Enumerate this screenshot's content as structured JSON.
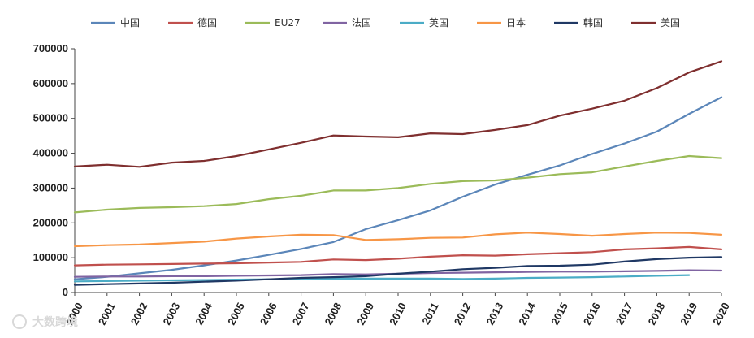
{
  "chart_data": {
    "type": "line",
    "title": "",
    "xlabel": "",
    "ylabel": "",
    "ylim": [
      0,
      700000
    ],
    "yticks": [
      "0",
      "100000",
      "200000",
      "300000",
      "400000",
      "500000",
      "600000",
      "700000"
    ],
    "ytick_values": [
      0,
      100000,
      200000,
      300000,
      400000,
      500000,
      600000,
      700000
    ],
    "categories": [
      "2000",
      "2001",
      "2002",
      "2003",
      "2004",
      "2005",
      "2006",
      "2007",
      "2008",
      "2009",
      "2010",
      "2011",
      "2012",
      "2013",
      "2014",
      "2015",
      "2016",
      "2017",
      "2018",
      "2019",
      "2020"
    ],
    "grid": false,
    "legend_position": "top",
    "series": [
      {
        "name": "中国",
        "color": "#5b86b9",
        "values": [
          38000,
          45000,
          55000,
          65000,
          78000,
          92000,
          108000,
          125000,
          145000,
          182000,
          208000,
          236000,
          275000,
          310000,
          338000,
          365000,
          398000,
          428000,
          462000,
          513000,
          561000
        ]
      },
      {
        "name": "德国",
        "color": "#c0504d",
        "values": [
          78000,
          80000,
          81000,
          82000,
          83000,
          84000,
          86000,
          88000,
          95000,
          93000,
          97000,
          103000,
          107000,
          106000,
          110000,
          113000,
          116000,
          124000,
          127000,
          131000,
          124000
        ]
      },
      {
        "name": "EU27",
        "color": "#9bbb59",
        "values": [
          230000,
          238000,
          243000,
          245000,
          248000,
          254000,
          268000,
          278000,
          293000,
          293000,
          300000,
          312000,
          320000,
          322000,
          330000,
          340000,
          345000,
          362000,
          378000,
          392000,
          386000
        ]
      },
      {
        "name": "法国",
        "color": "#8064a2",
        "values": [
          45000,
          46000,
          46000,
          47000,
          47000,
          48000,
          49000,
          50000,
          53000,
          52000,
          54000,
          56000,
          57000,
          58000,
          59000,
          60000,
          60000,
          61000,
          62000,
          64000,
          63000
        ]
      },
      {
        "name": "英国",
        "color": "#4bacc6",
        "values": [
          32000,
          33000,
          34000,
          35000,
          36000,
          37000,
          38000,
          39000,
          40000,
          40000,
          40000,
          40000,
          39000,
          40000,
          42000,
          43000,
          44000,
          46000,
          48000,
          50000,
          null
        ]
      },
      {
        "name": "日本",
        "color": "#f79646",
        "values": [
          133000,
          136000,
          138000,
          142000,
          146000,
          155000,
          161000,
          166000,
          165000,
          151000,
          153000,
          157000,
          158000,
          167000,
          172000,
          168000,
          163000,
          168000,
          172000,
          171000,
          166000
        ]
      },
      {
        "name": "韩国",
        "color": "#1f3864",
        "values": [
          22000,
          24000,
          26000,
          28000,
          31000,
          34000,
          38000,
          42000,
          44000,
          47000,
          54000,
          60000,
          67000,
          71000,
          76000,
          77000,
          80000,
          89000,
          96000,
          100000,
          102000
        ]
      },
      {
        "name": "美国",
        "color": "#7f2f2f",
        "values": [
          362000,
          367000,
          361000,
          373000,
          378000,
          392000,
          411000,
          430000,
          451000,
          448000,
          446000,
          457000,
          455000,
          467000,
          481000,
          508000,
          528000,
          551000,
          587000,
          632000,
          664000
        ]
      }
    ]
  },
  "watermark": {
    "text": "大数跨境"
  }
}
